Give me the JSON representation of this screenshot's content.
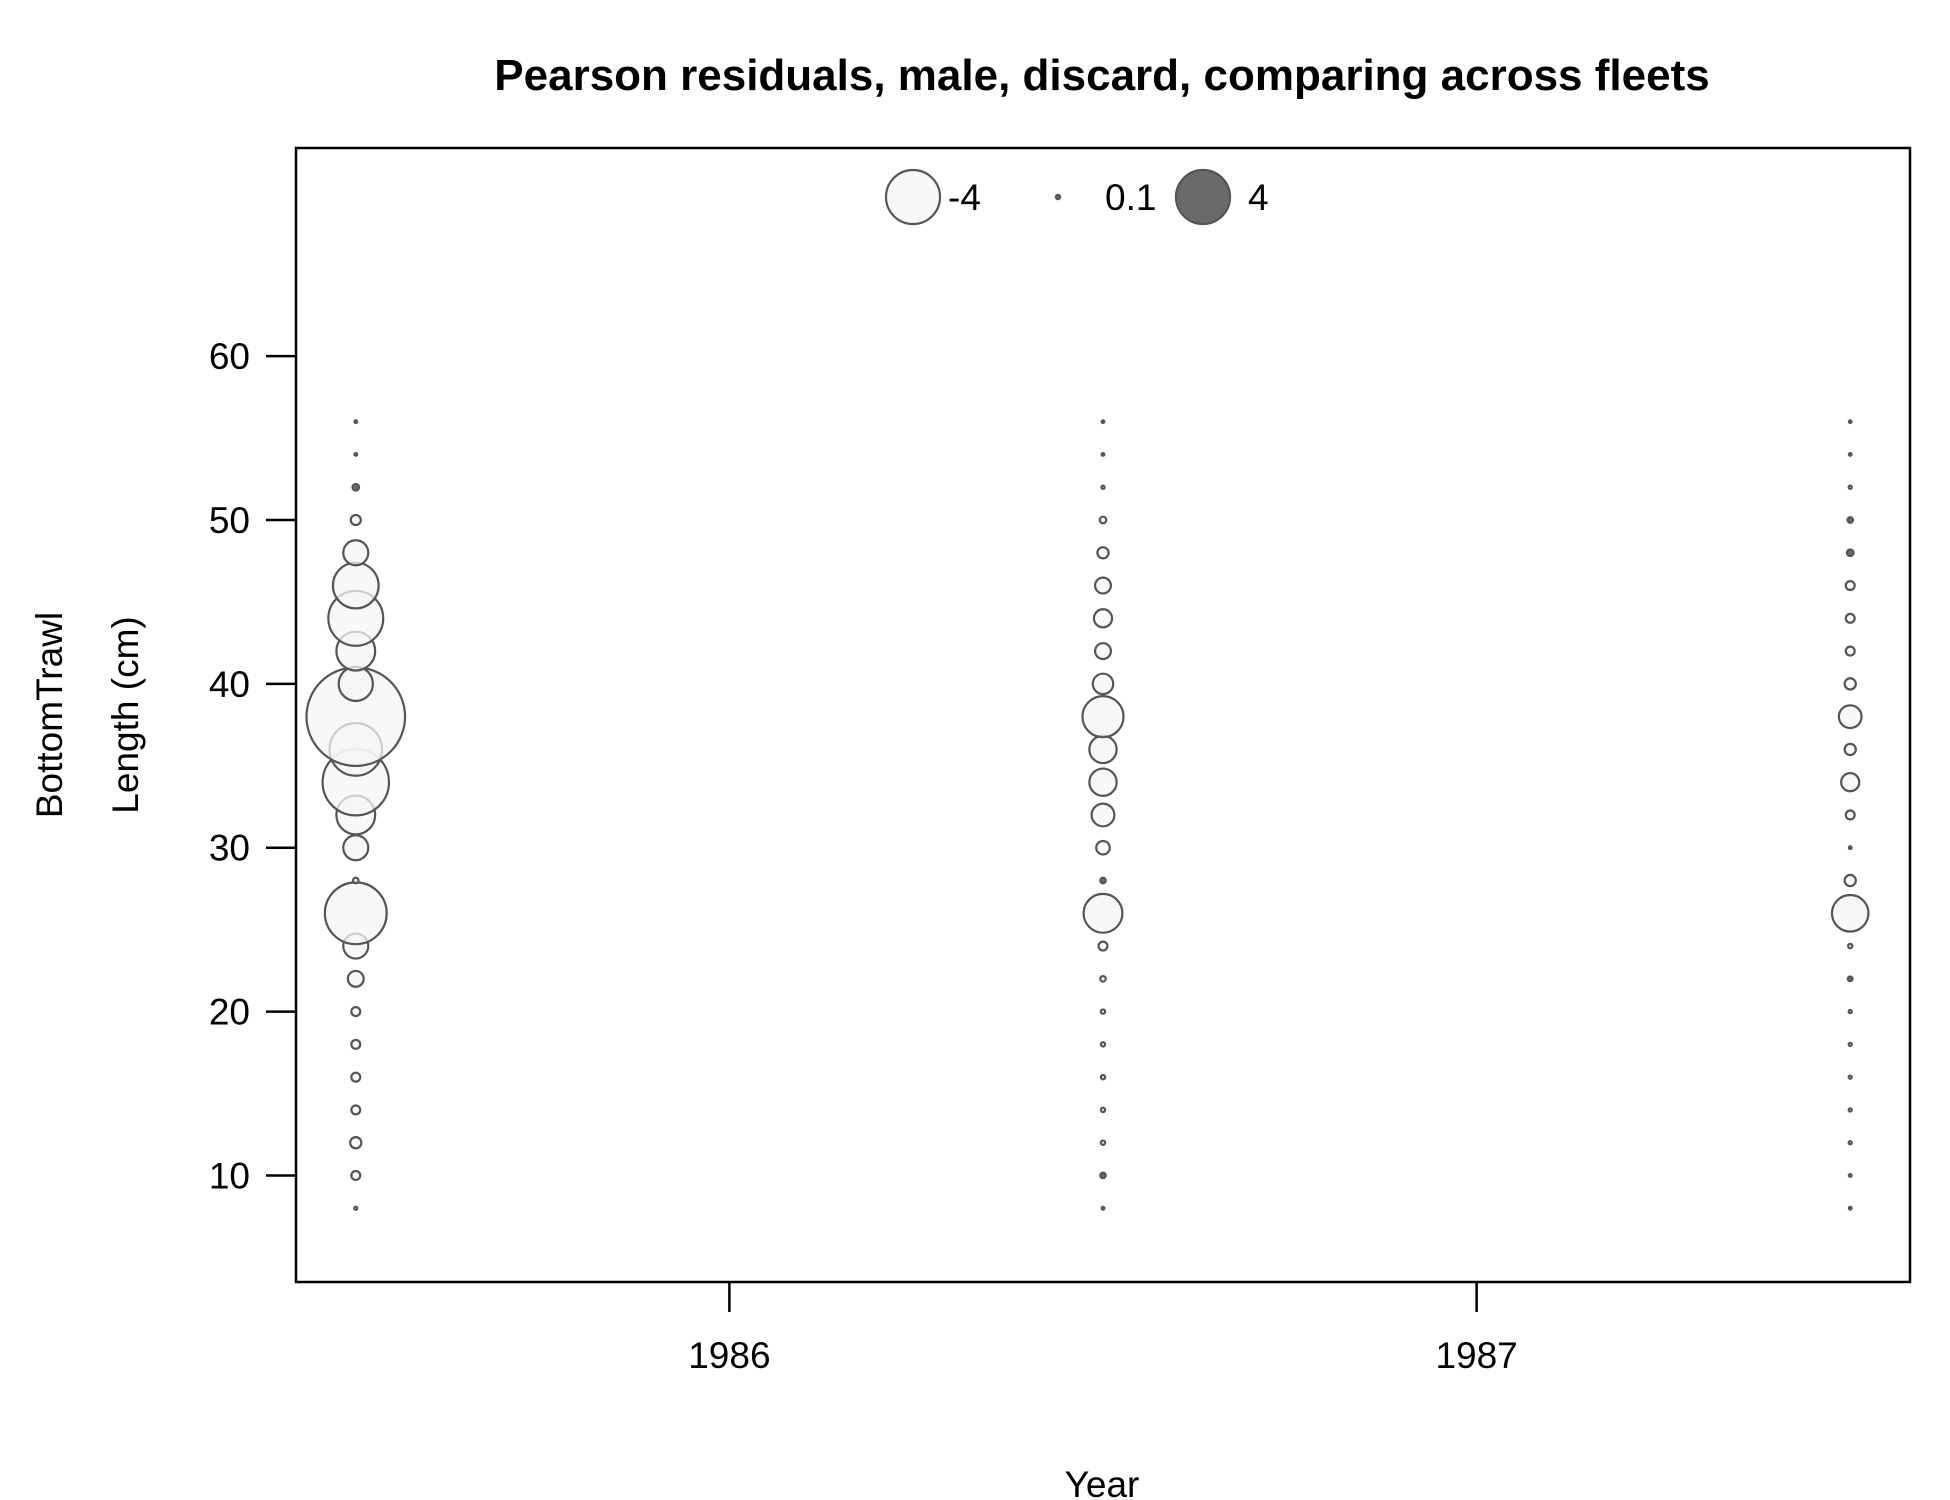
{
  "chart_data": {
    "type": "scatter",
    "title": "Pearson residuals, male, discard, comparing across fleets",
    "xlabel": "Year",
    "ylabel_lines": [
      "BottomTrawl",
      "Length (cm)"
    ],
    "xlim": [
      1985.42,
      1987.58
    ],
    "ylim": [
      3.5,
      72.7
    ],
    "x_ticks": [
      1986,
      1987
    ],
    "x_tick_labels": [
      "1986",
      "1987"
    ],
    "y_ticks": [
      10,
      20,
      30,
      40,
      50,
      60
    ],
    "y_tick_labels": [
      "10",
      "20",
      "30",
      "40",
      "50",
      "60"
    ],
    "grid": false,
    "legend_position": "top-center",
    "legend": [
      {
        "label": "-4",
        "value": -4
      },
      {
        "label": "0.1",
        "value": 0.1
      },
      {
        "label": "4",
        "value": 4
      }
    ],
    "colors": {
      "negative_fill": "#f5f5f5",
      "positive_fill": "#5a5a5a",
      "stroke": "#555555"
    },
    "series": [
      {
        "x": 1985.5,
        "points": [
          {
            "length": 8,
            "residual": -0.05
          },
          {
            "length": 10,
            "residual": -0.3
          },
          {
            "length": 12,
            "residual": -0.4
          },
          {
            "length": 14,
            "residual": -0.3
          },
          {
            "length": 16,
            "residual": -0.3
          },
          {
            "length": 18,
            "residual": -0.3
          },
          {
            "length": 20,
            "residual": -0.3
          },
          {
            "length": 22,
            "residual": -0.6
          },
          {
            "length": 24,
            "residual": -1.0
          },
          {
            "length": 26,
            "residual": -2.6
          },
          {
            "length": 28,
            "residual": -0.15
          },
          {
            "length": 30,
            "residual": -1.0
          },
          {
            "length": 32,
            "residual": -1.6
          },
          {
            "length": 34,
            "residual": -2.8
          },
          {
            "length": 36,
            "residual": -2.2
          },
          {
            "length": 38,
            "residual": -4.2
          },
          {
            "length": 40,
            "residual": -1.4
          },
          {
            "length": 42,
            "residual": -1.6
          },
          {
            "length": 44,
            "residual": -2.3
          },
          {
            "length": 46,
            "residual": -1.9
          },
          {
            "length": 48,
            "residual": -1.0
          },
          {
            "length": 50,
            "residual": -0.35
          },
          {
            "length": 52,
            "residual": 0.2
          },
          {
            "length": 54,
            "residual": -0.03
          },
          {
            "length": 56,
            "residual": -0.03
          }
        ]
      },
      {
        "x": 1986.5,
        "points": [
          {
            "length": 8,
            "residual": -0.03
          },
          {
            "length": 10,
            "residual": 0.15
          },
          {
            "length": 12,
            "residual": -0.1
          },
          {
            "length": 14,
            "residual": -0.1
          },
          {
            "length": 16,
            "residual": -0.1
          },
          {
            "length": 18,
            "residual": -0.1
          },
          {
            "length": 20,
            "residual": -0.1
          },
          {
            "length": 22,
            "residual": -0.15
          },
          {
            "length": 24,
            "residual": -0.3
          },
          {
            "length": 26,
            "residual": -1.6
          },
          {
            "length": 28,
            "residual": 0.15
          },
          {
            "length": 30,
            "residual": -0.5
          },
          {
            "length": 32,
            "residual": -0.9
          },
          {
            "length": 34,
            "residual": -1.1
          },
          {
            "length": 36,
            "residual": -1.1
          },
          {
            "length": 38,
            "residual": -1.7
          },
          {
            "length": 40,
            "residual": -0.8
          },
          {
            "length": 42,
            "residual": -0.6
          },
          {
            "length": 44,
            "residual": -0.7
          },
          {
            "length": 46,
            "residual": -0.6
          },
          {
            "length": 48,
            "residual": -0.4
          },
          {
            "length": 50,
            "residual": -0.2
          },
          {
            "length": 52,
            "residual": -0.05
          },
          {
            "length": 54,
            "residual": -0.03
          },
          {
            "length": 56,
            "residual": -0.03
          }
        ]
      },
      {
        "x": 1987.5,
        "points": [
          {
            "length": 8,
            "residual": -0.03
          },
          {
            "length": 10,
            "residual": -0.03
          },
          {
            "length": 12,
            "residual": -0.05
          },
          {
            "length": 14,
            "residual": -0.05
          },
          {
            "length": 16,
            "residual": -0.05
          },
          {
            "length": 18,
            "residual": -0.05
          },
          {
            "length": 20,
            "residual": -0.05
          },
          {
            "length": 22,
            "residual": 0.12
          },
          {
            "length": 24,
            "residual": -0.1
          },
          {
            "length": 26,
            "residual": -1.5
          },
          {
            "length": 28,
            "residual": -0.4
          },
          {
            "length": 30,
            "residual": -0.03
          },
          {
            "length": 32,
            "residual": -0.3
          },
          {
            "length": 34,
            "residual": -0.7
          },
          {
            "length": 36,
            "residual": -0.4
          },
          {
            "length": 38,
            "residual": -0.9
          },
          {
            "length": 40,
            "residual": -0.4
          },
          {
            "length": 42,
            "residual": -0.3
          },
          {
            "length": 44,
            "residual": -0.3
          },
          {
            "length": 46,
            "residual": -0.3
          },
          {
            "length": 48,
            "residual": 0.2
          },
          {
            "length": 50,
            "residual": 0.15
          },
          {
            "length": 52,
            "residual": -0.05
          },
          {
            "length": 54,
            "residual": -0.03
          },
          {
            "length": 56,
            "residual": -0.03
          }
        ]
      }
    ]
  }
}
